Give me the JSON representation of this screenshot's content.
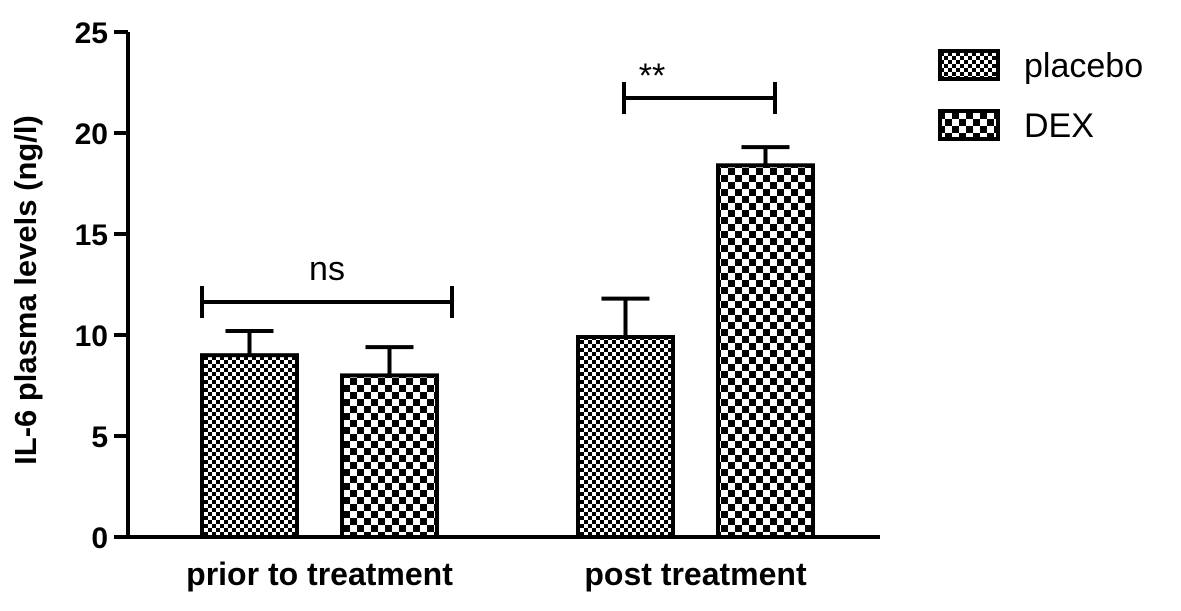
{
  "chart_data": {
    "type": "bar",
    "title": "",
    "xlabel": "",
    "ylabel": "IL-6 plasma levels (ng/l)",
    "ylim": [
      0,
      25
    ],
    "yticks": [
      0,
      5,
      10,
      15,
      20,
      25
    ],
    "categories": [
      "prior to treatment",
      "post treatment"
    ],
    "series": [
      {
        "name": "placebo",
        "values": [
          9.0,
          9.9
        ],
        "errors": [
          1.2,
          1.9
        ],
        "pattern": "fine-checker"
      },
      {
        "name": "DEX",
        "values": [
          8.0,
          18.4
        ],
        "errors": [
          1.4,
          0.9
        ],
        "pattern": "coarse-checker"
      }
    ],
    "annotations": [
      {
        "category": "prior to treatment",
        "text": "ns"
      },
      {
        "category": "post treatment",
        "text": "**"
      }
    ],
    "legend_position": "top-right",
    "grid": false
  }
}
